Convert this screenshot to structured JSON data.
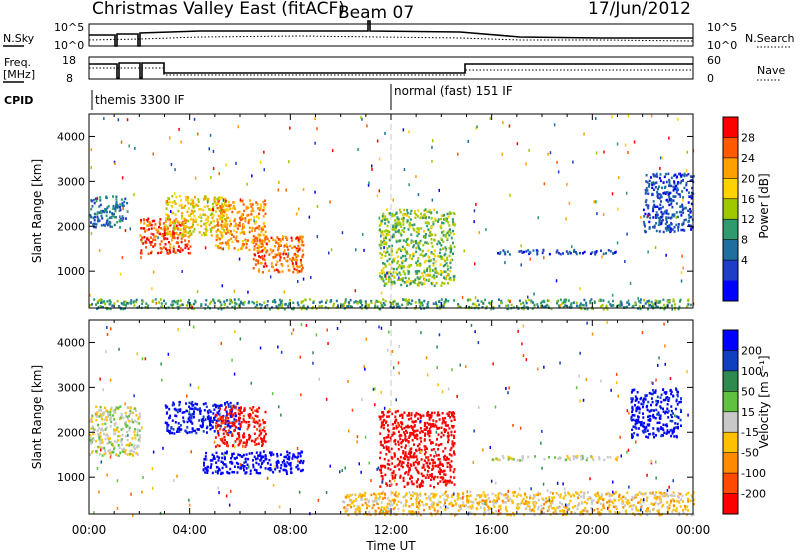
{
  "header": {
    "radar": "Christmas Valley East (fitACF)",
    "beam": "Beam 07",
    "date": "17/Jun/2012"
  },
  "panels": {
    "nsky_label": "N.Sky",
    "nsky_ticks": [
      "10^5",
      "10^0"
    ],
    "nsearch_label": "N.Search",
    "nsearch_ticks": [
      "10^5",
      "10^0"
    ],
    "freq_label_1": "Freq.",
    "freq_label_2": "[MHz]",
    "freq_ticks": [
      "18",
      "8"
    ],
    "nave_label": "Nave",
    "nave_ticks": [
      "60",
      "0"
    ],
    "cpid_label": "CPID",
    "cpid_segments": [
      "themis 3300 IF",
      "normal (fast) 151 IF"
    ]
  },
  "colorbars": {
    "power": {
      "label": "Power [dB]",
      "ticks": [
        "28",
        "24",
        "20",
        "16",
        "12",
        "8",
        "4"
      ],
      "colors": [
        "#ff0000",
        "#ff5a00",
        "#ffa000",
        "#ffd200",
        "#a0c800",
        "#2e9a6e",
        "#1f6e9e",
        "#1e3ec8",
        "#0000ff"
      ]
    },
    "velocity": {
      "label": "Velocity [m s⁻¹]",
      "ticks": [
        "200",
        "100",
        "50",
        "15",
        "-15",
        "-50",
        "-100",
        "-200"
      ],
      "colors": [
        "#0000ff",
        "#1040c0",
        "#2e8a4e",
        "#60c040",
        "#c8c8c8",
        "#ffc000",
        "#ff8a00",
        "#ff4a00",
        "#ff0000"
      ]
    }
  },
  "chart_data": [
    {
      "type": "heatmap",
      "parameter": "Power",
      "xlabel": "Time UT",
      "ylabel": "Slant Range [km]",
      "xticks": [
        "00:00",
        "04:00",
        "08:00",
        "12:00",
        "16:00",
        "20:00",
        "00:00"
      ],
      "yticks": [
        1000,
        2000,
        3000,
        4000
      ],
      "xlim": [
        0,
        24
      ],
      "ylim": [
        180,
        4500
      ],
      "zlim": [
        0,
        30
      ],
      "regions": [
        {
          "t": [
            0.0,
            1.5
          ],
          "r": [
            2000,
            2700
          ],
          "value": 8
        },
        {
          "t": [
            2.0,
            4.0
          ],
          "r": [
            1400,
            2200
          ],
          "value": 26
        },
        {
          "t": [
            3.0,
            5.5
          ],
          "r": [
            1800,
            2700
          ],
          "value": 18
        },
        {
          "t": [
            5.0,
            7.0
          ],
          "r": [
            1500,
            2600
          ],
          "value": 22
        },
        {
          "t": [
            6.5,
            8.5
          ],
          "r": [
            1000,
            1800
          ],
          "value": 24
        },
        {
          "t": [
            11.5,
            14.5
          ],
          "r": [
            700,
            2400
          ],
          "value": 14
        },
        {
          "t": [
            16.0,
            21.0
          ],
          "r": [
            1400,
            1500
          ],
          "value": 6
        },
        {
          "t": [
            22.0,
            24.0
          ],
          "r": [
            1900,
            3200
          ],
          "value": 6
        },
        {
          "t": [
            0.0,
            24.0
          ],
          "r": [
            180,
            400
          ],
          "value": 12
        }
      ]
    },
    {
      "type": "heatmap",
      "parameter": "Velocity",
      "xlabel": "Time UT",
      "ylabel": "Slant Range [km]",
      "xticks": [
        "00:00",
        "04:00",
        "08:00",
        "12:00",
        "16:00",
        "20:00",
        "00:00"
      ],
      "yticks": [
        1000,
        2000,
        3000,
        4000
      ],
      "xlim": [
        0,
        24
      ],
      "ylim": [
        180,
        4500
      ],
      "zlim": [
        -200,
        200
      ],
      "regions": [
        {
          "t": [
            0.0,
            2.0
          ],
          "r": [
            1500,
            2600
          ],
          "value": 0
        },
        {
          "t": [
            3.0,
            6.0
          ],
          "r": [
            2000,
            2700
          ],
          "value": 180
        },
        {
          "t": [
            5.0,
            7.0
          ],
          "r": [
            1700,
            2600
          ],
          "value": -170
        },
        {
          "t": [
            4.5,
            8.5
          ],
          "r": [
            1100,
            1600
          ],
          "value": 200
        },
        {
          "t": [
            11.5,
            14.5
          ],
          "r": [
            800,
            2500
          ],
          "value": -200
        },
        {
          "t": [
            16.0,
            21.0
          ],
          "r": [
            1400,
            1500
          ],
          "value": 0
        },
        {
          "t": [
            21.5,
            23.5
          ],
          "r": [
            1900,
            3000
          ],
          "value": 180
        },
        {
          "t": [
            10.0,
            24.0
          ],
          "r": [
            180,
            700
          ],
          "value": -40
        }
      ]
    }
  ]
}
